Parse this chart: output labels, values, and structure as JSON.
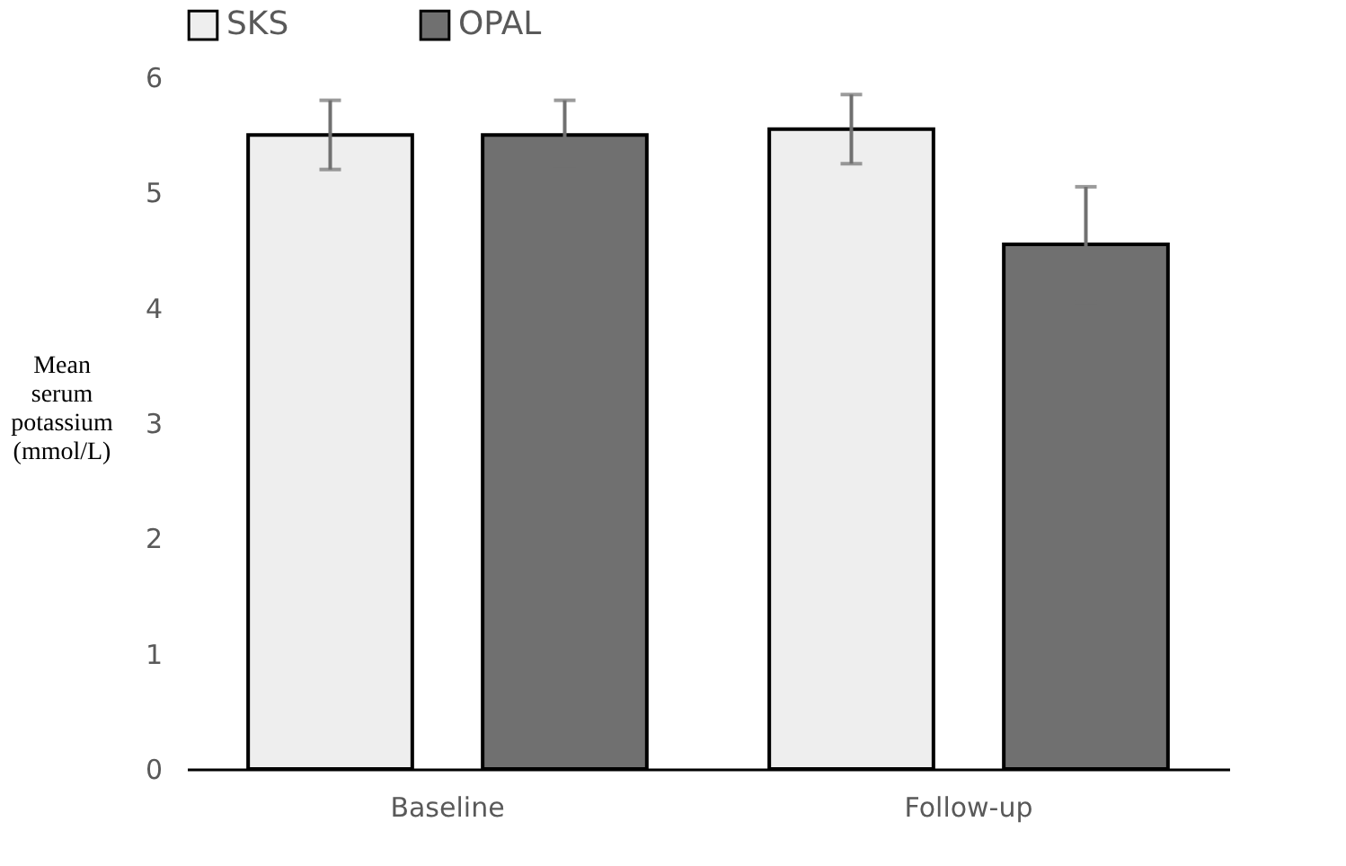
{
  "chart_data": {
    "type": "bar",
    "ylabel": "Mean serum potassium (mmol/L)",
    "categories": [
      "Baseline",
      "Follow-up"
    ],
    "series": [
      {
        "name": "SKS",
        "color": "#eeeeee",
        "values": [
          5.5,
          5.55
        ],
        "errors": [
          0.3,
          0.3
        ]
      },
      {
        "name": "OPAL",
        "color": "#707070",
        "values": [
          5.5,
          4.55
        ],
        "errors": [
          0.3,
          0.5
        ]
      }
    ],
    "ylim": [
      0,
      6
    ],
    "yticks": [
      0,
      1,
      2,
      3,
      4,
      5,
      6
    ],
    "grid": false,
    "legend": "top"
  }
}
